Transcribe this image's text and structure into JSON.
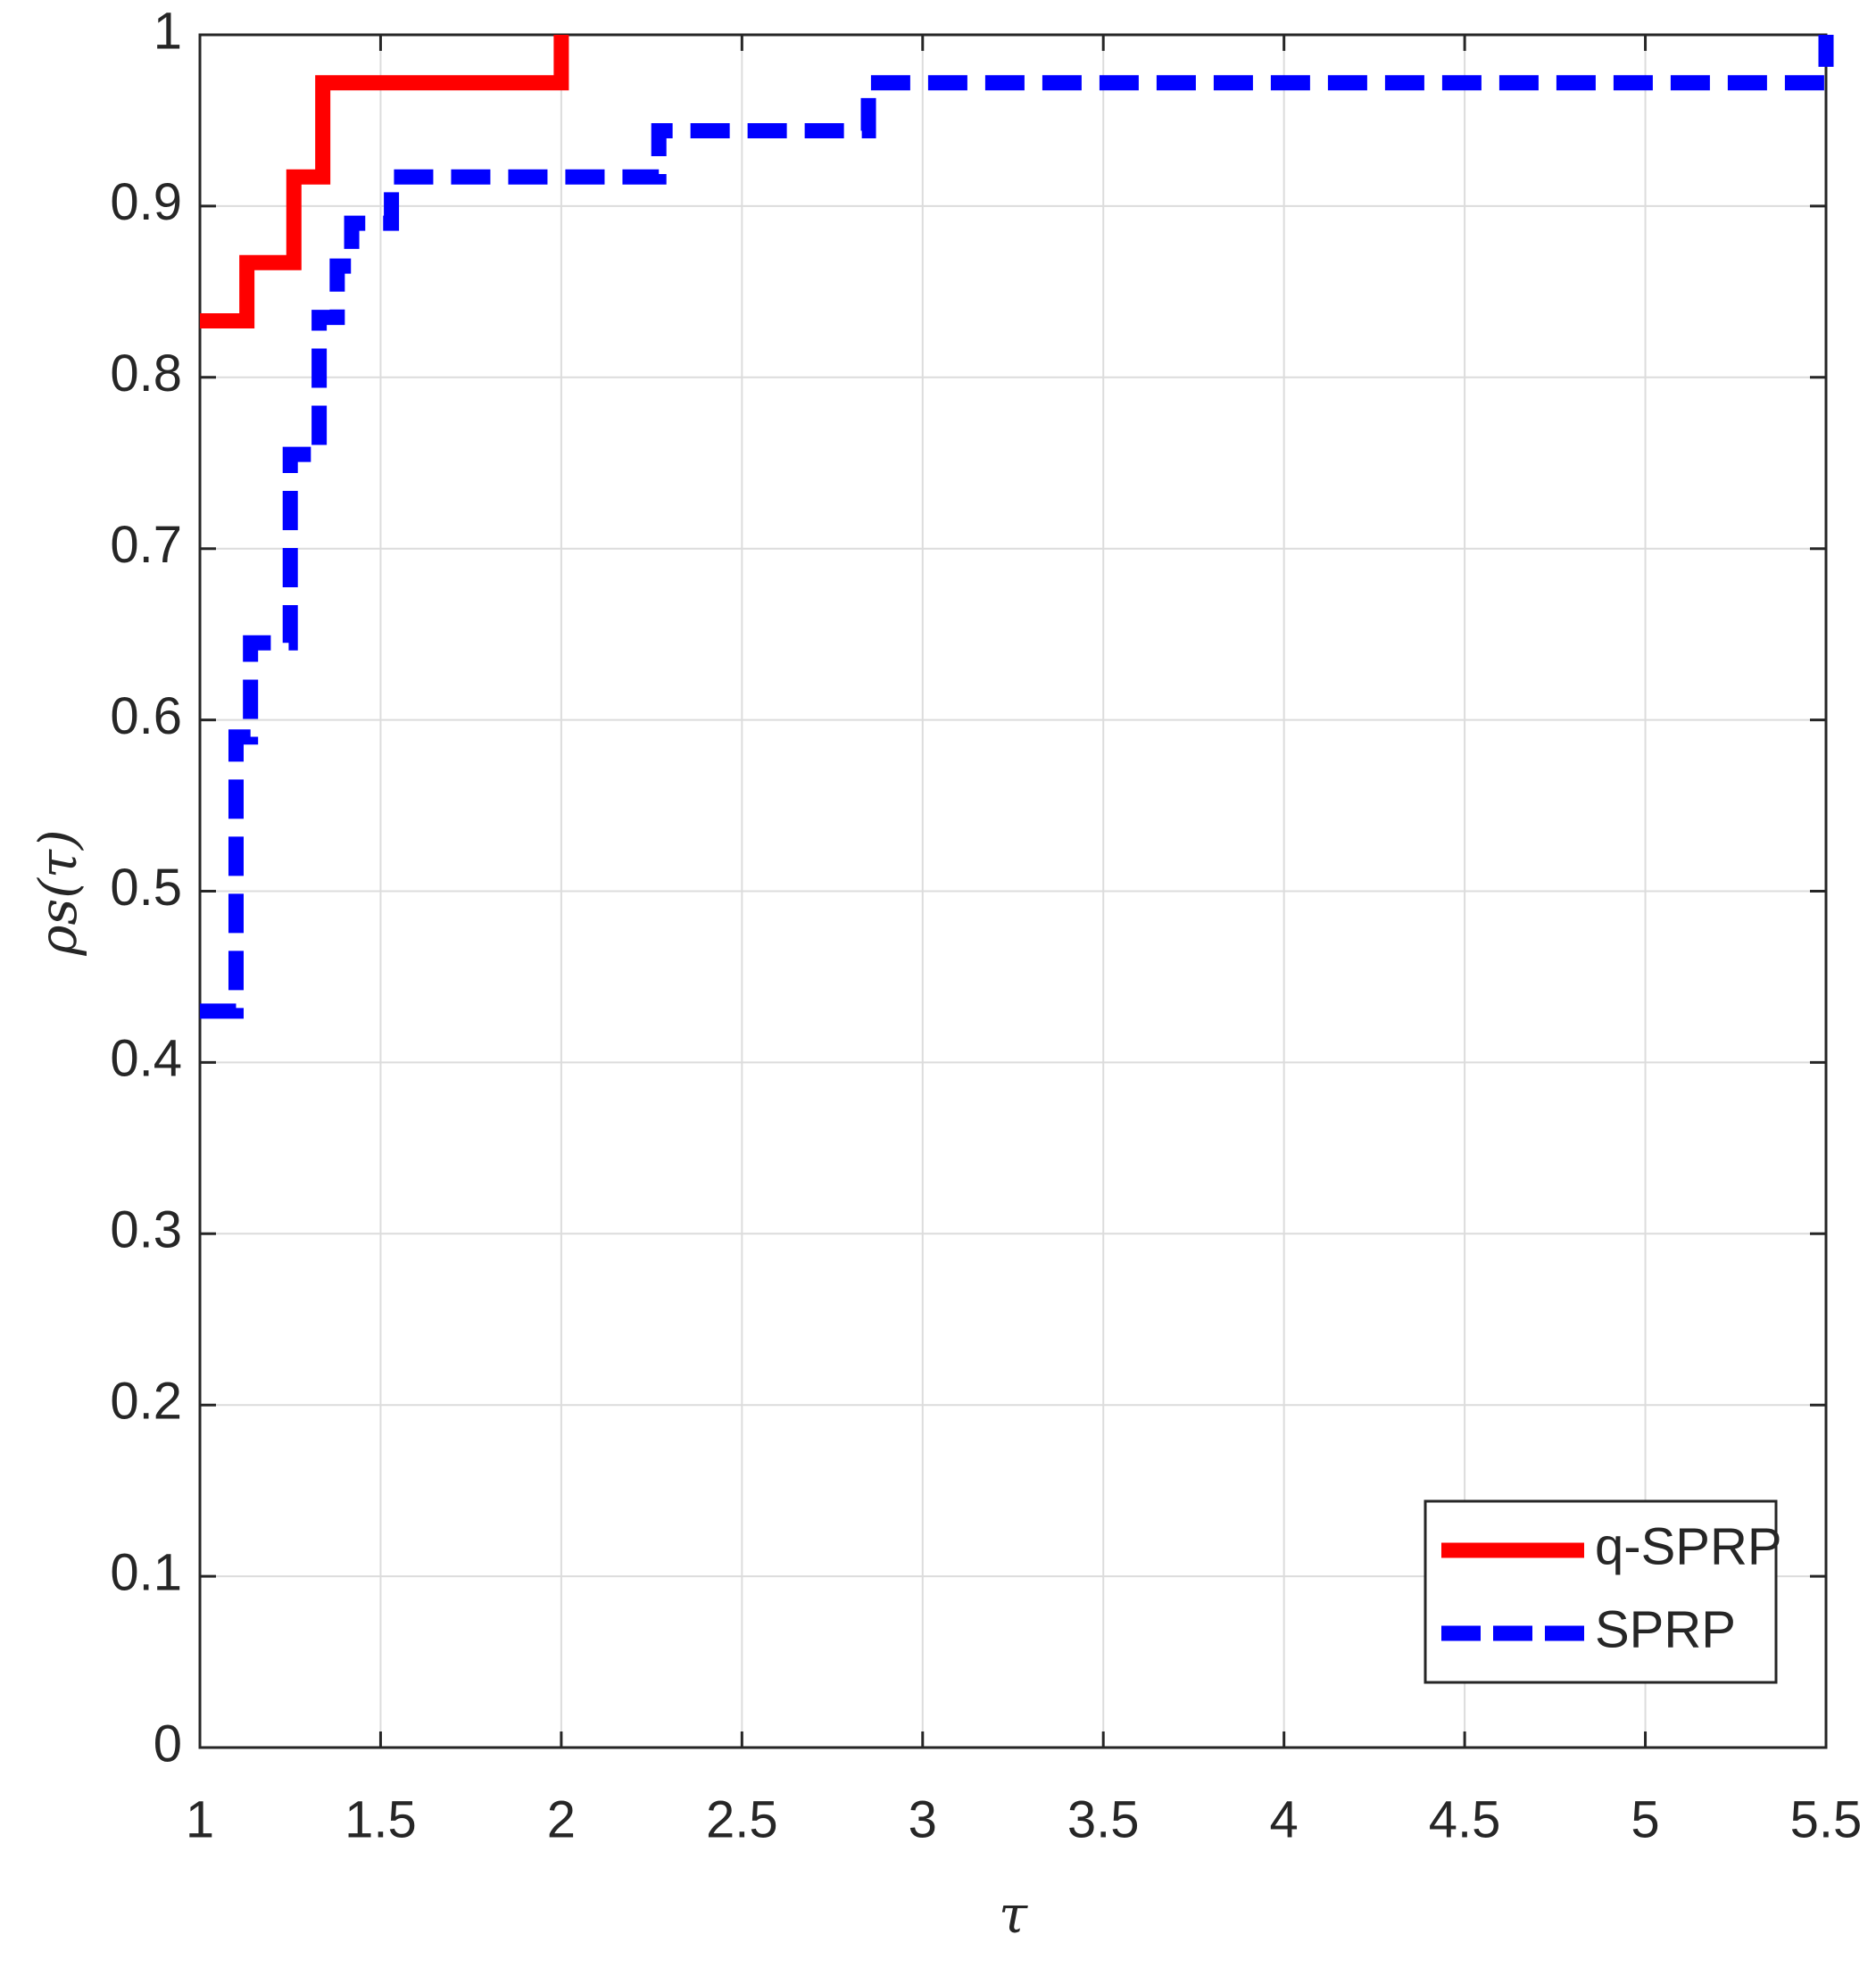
{
  "chart_data": {
    "type": "line",
    "xlabel": "τ",
    "ylabel": "ρs(τ)",
    "xlim": [
      1,
      5.5
    ],
    "xticks": [
      1,
      1.5,
      2,
      2.5,
      3,
      3.5,
      4,
      4.5,
      5,
      5.5
    ],
    "ylim": [
      0,
      1
    ],
    "yticks": [
      0,
      0.1,
      0.2,
      0.3,
      0.4,
      0.5,
      0.6,
      0.7,
      0.8,
      0.9,
      1
    ],
    "grid": true,
    "legend": "lower right",
    "series": [
      {
        "name": "q-SPRP",
        "color": "#ff0000",
        "style": "solid",
        "x": [
          1,
          1.13,
          1.13,
          1.26,
          1.26,
          1.34,
          1.34,
          2,
          2
        ],
        "values": [
          0.833,
          0.833,
          0.867,
          0.867,
          0.917,
          0.917,
          0.972,
          0.972,
          1
        ]
      },
      {
        "name": "SPRP",
        "color": "#0000ff",
        "style": "dashed",
        "x": [
          1,
          1.1,
          1.1,
          1.14,
          1.14,
          1.25,
          1.25,
          1.33,
          1.33,
          1.38,
          1.38,
          1.42,
          1.42,
          1.53,
          1.53,
          2.27,
          2.27,
          2.85,
          2.85,
          5.5,
          5.5
        ],
        "values": [
          0.43,
          0.43,
          0.59,
          0.59,
          0.645,
          0.645,
          0.755,
          0.755,
          0.835,
          0.835,
          0.865,
          0.865,
          0.89,
          0.89,
          0.917,
          0.917,
          0.944,
          0.944,
          0.972,
          0.972,
          1
        ]
      }
    ]
  }
}
